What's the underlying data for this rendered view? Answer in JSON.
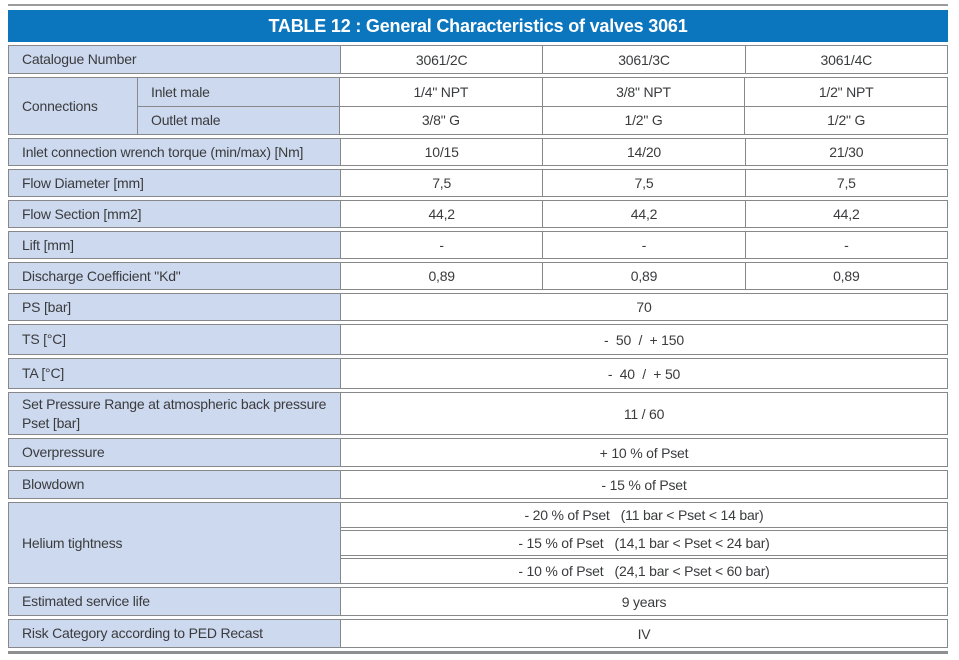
{
  "title": "TABLE 12 : General Characteristics of valves 3061",
  "colors": {
    "header_blue": "#0b76be",
    "label_blue": "#cdd9ee"
  },
  "catalogue": {
    "label": "Catalogue Number",
    "values": [
      "3061/2C",
      "3061/3C",
      "3061/4C"
    ]
  },
  "connections": {
    "label": "Connections",
    "rows": [
      {
        "label": "Inlet male",
        "values": [
          "1/4\" NPT",
          "3/8\" NPT",
          "1/2\" NPT"
        ]
      },
      {
        "label": "Outlet male",
        "values": [
          "3/8\" G",
          "1/2\" G",
          "1/2\" G"
        ]
      }
    ]
  },
  "torque": {
    "label": "Inlet connection wrench torque (min/max) [Nm]",
    "values": [
      "10/15",
      "14/20",
      "21/30"
    ]
  },
  "flow_diameter": {
    "label": "Flow Diameter [mm]",
    "values": [
      "7,5",
      "7,5",
      "7,5"
    ]
  },
  "flow_section": {
    "label": "Flow Section [mm2]",
    "values": [
      "44,2",
      "44,2",
      "44,2"
    ]
  },
  "lift": {
    "label": "Lift [mm]",
    "values": [
      "-",
      "-",
      "-"
    ]
  },
  "discharge": {
    "label": "Discharge Coefficient \"Kd\"",
    "values": [
      "0,89",
      "0,89",
      "0,89"
    ]
  },
  "ps": {
    "label": "PS [bar]",
    "value": "70"
  },
  "ts": {
    "label": "TS [°C]",
    "value": "-  50  /  + 150"
  },
  "ta": {
    "label": "TA [°C]",
    "value": "-  40  /  + 50"
  },
  "set_pressure": {
    "label": "Set Pressure Range at atmospheric back pressure\nPset [bar]",
    "value": "11 / 60"
  },
  "overpressure": {
    "label": "Overpressure",
    "value": "+ 10 % of Pset"
  },
  "blowdown": {
    "label": "Blowdown",
    "value": "- 15 % of Pset"
  },
  "helium": {
    "label": "Helium tightness",
    "rows": [
      "- 20 % of Pset   (11 bar < Pset < 14 bar)",
      "- 15 % of Pset   (14,1 bar < Pset < 24 bar)",
      "- 10 % of Pset   (24,1 bar < Pset < 60 bar)"
    ]
  },
  "service_life": {
    "label": "Estimated service life",
    "value": "9 years"
  },
  "risk": {
    "label": "Risk Category according to PED Recast",
    "value": "IV"
  }
}
